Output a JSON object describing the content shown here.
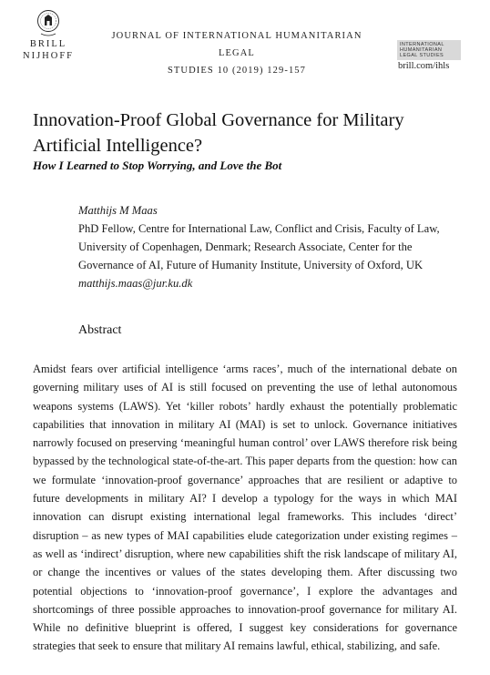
{
  "header": {
    "publisher_line1": "BRILL",
    "publisher_line2": "NIJHOFF",
    "journal_line1": "JOURNAL OF INTERNATIONAL HUMANITARIAN LEGAL",
    "journal_line2": "STUDIES 10 (2019) 129-157",
    "ihls_logo_lines": [
      "INTERNATIONAL",
      "HUMANITARIAN",
      "LEGAL STUDIES"
    ],
    "site_url": "brill.com/ihls"
  },
  "article": {
    "title_line1": "Innovation-Proof Global Governance for Military",
    "title_line2": "Artificial Intelligence?",
    "subtitle": "How I Learned to Stop Worrying, and Love the Bot"
  },
  "author": {
    "name": "Matthijs M Maas",
    "affiliation_lines": [
      "PhD Fellow, Centre for International Law, Conflict and Crisis, Faculty of Law,",
      "University of Copenhagen, Denmark; Research Associate, Center for the",
      "Governance of AI, Future of Humanity Institute, University of Oxford, UK"
    ],
    "email": "matthijs.maas@jur.ku.dk"
  },
  "abstract": {
    "heading": "Abstract",
    "text": "Amidst fears over artificial intelligence ‘arms races’, much of the international debate on governing military uses of AI is still focused on preventing the use of lethal autonomous weapons systems (LAWS). Yet ‘killer robots’ hardly exhaust the potentially problematic capabilities that innovation in military AI (MAI) is set to unlock. Governance initiatives narrowly focused on preserving ‘meaningful human control’ over LAWS therefore risk being bypassed by the technological state-of-the-art. This paper departs from the question: how can we formulate ‘innovation-proof governance’ approaches that are resilient or adaptive to future developments in military AI? I develop a typology for the ways in which MAI innovation can disrupt existing international legal frameworks. This includes ‘direct’ disruption – as new types of MAI capabilities elude categorization under existing regimes – as well as ‘indirect’ disruption, where new capabilities shift the risk landscape of military AI, or change the incentives or values of the states developing them. After discussing two potential objections to ‘innovation-proof governance’, I explore the advantages and shortcomings of three possible approaches to innovation-proof governance for military AI. While no definitive blueprint is offered, I suggest key considerations for governance strategies that seek to ensure that military AI remains lawful, ethical, stabilizing, and safe."
  }
}
